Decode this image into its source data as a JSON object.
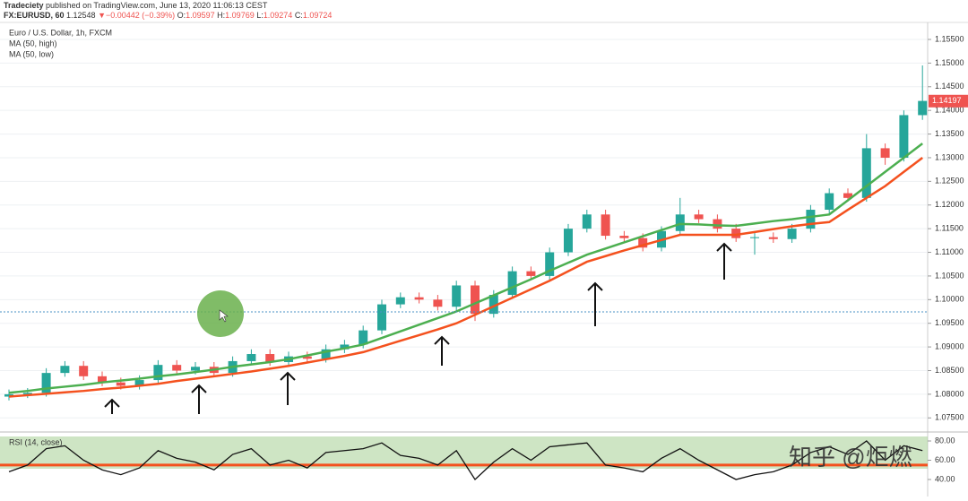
{
  "header": {
    "publisher": "Tradeciety",
    "published": "published on TradingView.com, June 13, 2020 11:06:13 CEST",
    "symbol": "FX:EURUSD, 60",
    "price": "1.12548",
    "arrow": "▼",
    "change": "−0.00442 (−0.39%)",
    "o_label": "O:",
    "o": "1.09597",
    "h_label": "H:",
    "h": "1.09769",
    "l_label": "L:",
    "l": "1.09274",
    "c_label": "C:",
    "c": "1.09724"
  },
  "watermark": "知乎 @炬燃",
  "chart_data": [
    {
      "type": "candlestick",
      "title": "Euro / U.S. Dollar, 1h, FXCM",
      "up_color": "#26a69a",
      "down_color": "#ef5350",
      "open": [
        1.0795,
        1.08,
        1.0803,
        1.0845,
        1.086,
        1.0838,
        1.0825,
        1.0818,
        1.083,
        1.0862,
        1.085,
        1.0858,
        1.0845,
        1.087,
        1.0885,
        1.0868,
        1.088,
        1.0875,
        1.0895,
        1.0905,
        1.0935,
        1.099,
        1.1005,
        1.1,
        1.0985,
        1.103,
        1.097,
        1.101,
        1.106,
        1.105,
        1.11,
        1.115,
        1.118,
        1.1135,
        1.113,
        1.111,
        1.1145,
        1.118,
        1.117,
        1.115,
        1.113,
        1.1132,
        1.1128,
        1.115,
        1.119,
        1.1225,
        1.1215,
        1.132,
        1.13,
        1.139
      ],
      "high": [
        1.081,
        1.0813,
        1.0855,
        1.087,
        1.087,
        1.0848,
        1.0835,
        1.084,
        1.0872,
        1.0872,
        1.0868,
        1.0868,
        1.088,
        1.0895,
        1.0895,
        1.089,
        1.089,
        1.0905,
        1.0915,
        1.0945,
        1.1,
        1.1015,
        1.1015,
        1.101,
        1.104,
        1.104,
        1.102,
        1.107,
        1.107,
        1.111,
        1.116,
        1.119,
        1.119,
        1.1145,
        1.114,
        1.1155,
        1.1215,
        1.119,
        1.118,
        1.116,
        1.1142,
        1.1142,
        1.116,
        1.12,
        1.1235,
        1.1235,
        1.135,
        1.133,
        1.14,
        1.1495
      ],
      "low": [
        1.0787,
        1.0792,
        1.0795,
        1.0837,
        1.083,
        1.0817,
        1.081,
        1.081,
        1.0822,
        1.0842,
        1.0842,
        1.0837,
        1.0837,
        1.0862,
        1.086,
        1.086,
        1.0867,
        1.0867,
        1.0887,
        1.0897,
        1.0927,
        1.0982,
        1.0992,
        1.0977,
        1.0977,
        1.0955,
        1.0962,
        1.1002,
        1.1042,
        1.1042,
        1.1092,
        1.1142,
        1.1127,
        1.1122,
        1.1102,
        1.1102,
        1.1137,
        1.1162,
        1.1142,
        1.1122,
        1.1095,
        1.112,
        1.112,
        1.1142,
        1.1182,
        1.1207,
        1.1207,
        1.1285,
        1.1292,
        1.138
      ],
      "close": [
        1.08,
        1.0803,
        1.0845,
        1.086,
        1.0838,
        1.0825,
        1.0818,
        1.083,
        1.0862,
        1.085,
        1.0858,
        1.0845,
        1.087,
        1.0885,
        1.0868,
        1.088,
        1.0875,
        1.0895,
        1.0905,
        1.0935,
        1.099,
        1.1005,
        1.1,
        1.0985,
        1.103,
        1.097,
        1.101,
        1.106,
        1.105,
        1.11,
        1.115,
        1.118,
        1.1135,
        1.113,
        1.111,
        1.1145,
        1.118,
        1.117,
        1.115,
        1.113,
        1.1132,
        1.1128,
        1.115,
        1.119,
        1.1225,
        1.1215,
        1.132,
        1.13,
        1.139,
        1.142
      ],
      "series": [
        {
          "name": "MA (50, high)",
          "color": "#4caf50",
          "values": [
            1.0803,
            1.0807,
            1.0812,
            1.0816,
            1.082,
            1.0825,
            1.0829,
            1.0833,
            1.0838,
            1.0842,
            1.0847,
            1.0852,
            1.0858,
            1.0863,
            1.0868,
            1.0874,
            1.0882,
            1.089,
            1.0897,
            1.0905,
            1.0919,
            1.0933,
            1.0947,
            1.0961,
            1.0975,
            1.0992,
            1.1009,
            1.1026,
            1.1043,
            1.1061,
            1.1078,
            1.1095,
            1.1108,
            1.1121,
            1.1134,
            1.1147,
            1.116,
            1.1159,
            1.1157,
            1.1156,
            1.1161,
            1.1166,
            1.117,
            1.1175,
            1.118,
            1.121,
            1.124,
            1.127,
            1.13,
            1.133
          ]
        },
        {
          "name": "MA (50, low)",
          "color": "#f4511e",
          "values": [
            1.0795,
            1.0798,
            1.0801,
            1.0804,
            1.0807,
            1.0811,
            1.0814,
            1.0818,
            1.0822,
            1.0828,
            1.0833,
            1.0838,
            1.0843,
            1.0848,
            1.0854,
            1.086,
            1.0867,
            1.0874,
            1.0881,
            1.0889,
            1.0901,
            1.0913,
            1.0925,
            1.0937,
            1.095,
            1.0968,
            1.0986,
            1.1004,
            1.1022,
            1.104,
            1.106,
            1.108,
            1.1092,
            1.1104,
            1.1115,
            1.1126,
            1.1137,
            1.1137,
            1.1137,
            1.1137,
            1.1143,
            1.1149,
            1.1155,
            1.116,
            1.1164,
            1.119,
            1.1215,
            1.124,
            1.127,
            1.13
          ]
        }
      ],
      "last_price": 1.14197,
      "last_price_color": "#ef5350",
      "ylim": [
        1.0724,
        1.1586
      ],
      "yticks": [
        {
          "value": 1.075,
          "label": "1.07500"
        },
        {
          "value": 1.08,
          "label": "1.08000"
        },
        {
          "value": 1.085,
          "label": "1.08500"
        },
        {
          "value": 1.09,
          "label": "1.09000"
        },
        {
          "value": 1.095,
          "label": "1.09500"
        },
        {
          "value": 1.1,
          "label": "1.10000"
        },
        {
          "value": 1.105,
          "label": "1.10500"
        },
        {
          "value": 1.11,
          "label": "1.11000"
        },
        {
          "value": 1.115,
          "label": "1.11500"
        },
        {
          "value": 1.12,
          "label": "1.12000"
        },
        {
          "value": 1.125,
          "label": "1.12500"
        },
        {
          "value": 1.13,
          "label": "1.13000"
        },
        {
          "value": 1.135,
          "label": "1.13500"
        },
        {
          "value": 1.14,
          "label": "1.14000"
        },
        {
          "value": 1.145,
          "label": "1.14500"
        },
        {
          "value": 1.15,
          "label": "1.15000"
        },
        {
          "value": 1.155,
          "label": "1.15500"
        }
      ],
      "grid": true
    },
    {
      "type": "line",
      "title": "RSI (14, close)",
      "color": "#111111",
      "level": 55,
      "level_color": "#f4511e",
      "values": [
        48,
        55,
        72,
        75,
        60,
        50,
        45,
        52,
        70,
        62,
        58,
        50,
        66,
        72,
        55,
        60,
        52,
        68,
        70,
        72,
        78,
        65,
        62,
        55,
        70,
        40,
        58,
        72,
        60,
        74,
        76,
        78,
        55,
        52,
        48,
        62,
        72,
        60,
        50,
        40,
        45,
        48,
        55,
        68,
        74,
        66,
        80,
        60,
        75,
        70
      ],
      "ylim": [
        27.9,
        85.6
      ],
      "yticks": [
        {
          "value": 40,
          "label": "40.00"
        },
        {
          "value": 60,
          "label": "60.00"
        },
        {
          "value": 80,
          "label": "80.00"
        }
      ]
    }
  ]
}
